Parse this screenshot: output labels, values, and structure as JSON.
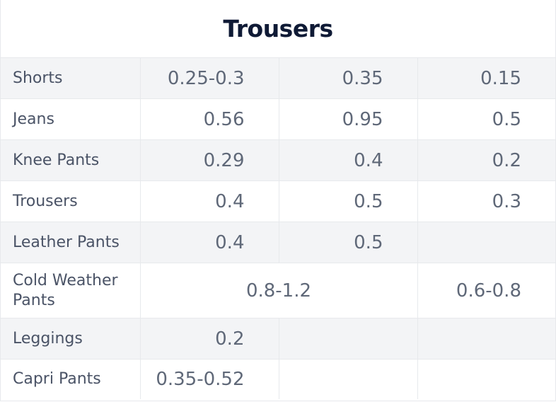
{
  "title": "Trousers",
  "rows": [
    {
      "label": "Shorts",
      "c1": "0.25-0.3",
      "c2": "0.35",
      "c3": "0.15"
    },
    {
      "label": "Jeans",
      "c1": "0.56",
      "c2": "0.95",
      "c3": "0.5"
    },
    {
      "label": "Knee Pants",
      "c1": "0.29",
      "c2": "0.4",
      "c3": "0.2"
    },
    {
      "label": "Trousers",
      "c1": "0.4",
      "c2": "0.5",
      "c3": "0.3"
    },
    {
      "label": "Leather Pants",
      "c1": "0.4",
      "c2": "0.5",
      "c3": ""
    },
    {
      "label": "Cold Weather Pants",
      "c12": "0.8-1.2",
      "c3": "0.6-0.8"
    },
    {
      "label": "Leggings",
      "c1": "0.2",
      "c2": "",
      "c3": ""
    },
    {
      "label": "Capri Pants",
      "c1": "0.35-0.52",
      "c2": "",
      "c3": ""
    }
  ],
  "colors": {
    "title": "#0f1a35",
    "label": "#4a5366",
    "value": "#5f6878",
    "shaded_row": "#f3f4f6",
    "border": "#e7e9ec"
  }
}
